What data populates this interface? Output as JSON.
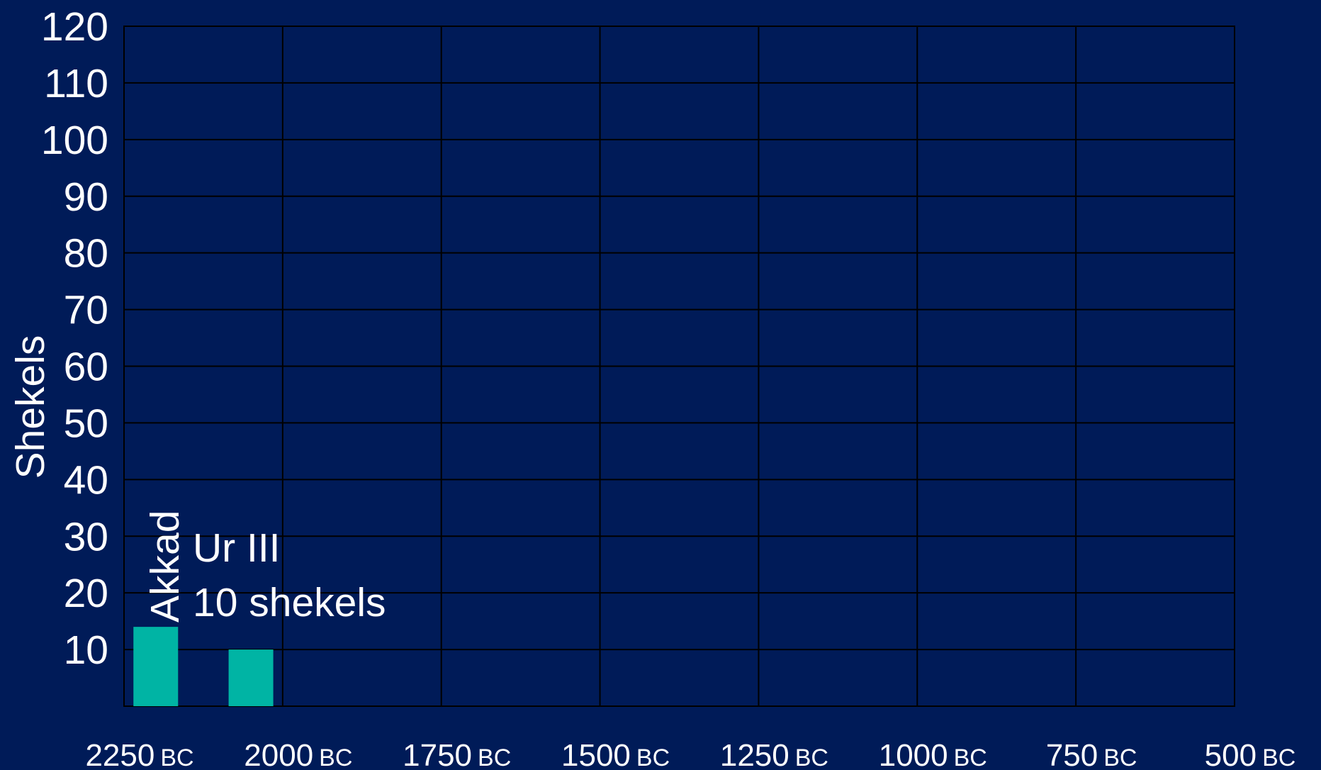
{
  "chart_data": {
    "type": "bar",
    "y_label": "Shekels",
    "x": [
      -2200,
      -2050
    ],
    "values": [
      14,
      10
    ],
    "color": "#00b4a4",
    "xlim": [
      -2250,
      -500
    ],
    "xticks": [
      {
        "value": -2250,
        "label": "2250 BC"
      },
      {
        "value": -2000,
        "label": "2000 BC"
      },
      {
        "value": -1750,
        "label": "1750 BC"
      },
      {
        "value": -1500,
        "label": "1500 BC"
      },
      {
        "value": -1250,
        "label": "1250 BC"
      },
      {
        "value": -1000,
        "label": "1000 BC"
      },
      {
        "value": -750,
        "label": "750 BC"
      },
      {
        "value": -500,
        "label": "500 BC"
      }
    ],
    "ylim": [
      0,
      120
    ],
    "yticks": [
      10,
      20,
      30,
      40,
      50,
      60,
      70,
      80,
      90,
      100,
      110,
      120
    ],
    "grid": true,
    "annotations": [
      "Akkad",
      "Ur III",
      "10 shekels"
    ]
  }
}
